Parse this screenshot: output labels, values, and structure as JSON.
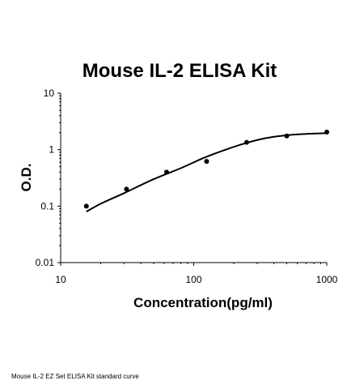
{
  "chart_data": {
    "type": "scatter",
    "title": "Mouse IL-2 ELISA Kit",
    "xlabel": "Concentration(pg/ml)",
    "ylabel": "O.D.",
    "xscale": "log",
    "yscale": "log",
    "xlim": [
      10,
      1000
    ],
    "ylim": [
      0.01,
      10
    ],
    "xticks": [
      "10",
      "100",
      "1000"
    ],
    "yticks": [
      "0.01",
      "0.1",
      "1",
      "10"
    ],
    "grid": false,
    "legend": "none",
    "points": {
      "x": [
        15.6,
        31.25,
        62.5,
        125,
        250,
        500,
        1000
      ],
      "y": [
        0.1,
        0.2,
        0.4,
        0.62,
        1.35,
        1.75,
        2.05
      ]
    },
    "fit_curve": {
      "x": [
        15.6,
        20,
        30,
        50,
        80,
        120,
        180,
        250,
        350,
        500,
        700,
        1000
      ],
      "y": [
        0.08,
        0.11,
        0.17,
        0.3,
        0.47,
        0.72,
        1.03,
        1.32,
        1.6,
        1.8,
        1.9,
        1.96
      ]
    },
    "colors": {
      "points": "#000000",
      "curve": "#000000",
      "axes": "#000000"
    }
  },
  "caption": "Mouse IL-2 EZ Set ELISA Kit standard curve"
}
